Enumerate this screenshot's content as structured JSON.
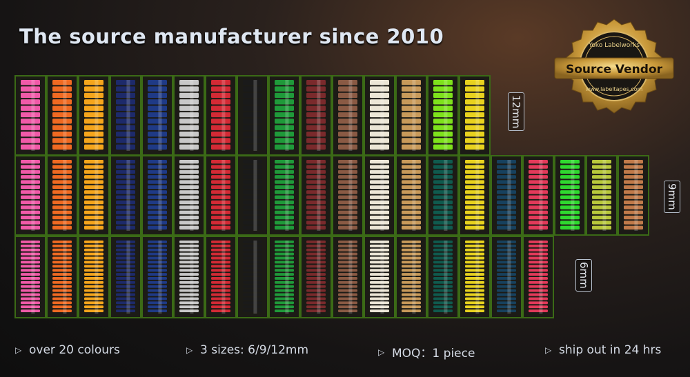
{
  "headline": "The source manufacturer since 2010",
  "badge": {
    "top_text": "Yoko Labelworks",
    "title": "Source Vendor",
    "url": "www.labeltapes.com"
  },
  "size_labels": {
    "s12": "12mm",
    "s9": "9mm",
    "s6": "6mm"
  },
  "features": [
    "over 20 colours",
    "3 sizes: 6/9/12mm",
    "MOQ：1 piece",
    "ship out in 24 hrs"
  ],
  "colors": {
    "box_green": "#4a8a1e",
    "box_inner": "#1c1b16",
    "spools": [
      "#f05aa8",
      "#f06a22",
      "#f5a51c",
      "#1d2a6a",
      "#1f3a86",
      "#c8c8c8",
      "#d32a35",
      "#1a1a1a",
      "#1f9a3a",
      "#7a2a2c",
      "#8a5a44",
      "#ece6d6",
      "#c89a5a",
      "#7ee21c",
      "#e8d21e",
      "#17415e",
      "#e23a5a",
      "#2fd82f",
      "#b8c83c",
      "#c07a4a",
      "#0f5a4e"
    ]
  },
  "rows": {
    "row12": [
      "#f05aa8",
      "#f06a22",
      "#f5a51c",
      "#1d2a6a",
      "#1f3a86",
      "#c8c8c8",
      "#d32a35",
      "#1a1a1a",
      "#1f9a3a",
      "#7a2a2c",
      "#8a5a44",
      "#ece6d6",
      "#c89a5a",
      "#7ee21c",
      "#e8d21e"
    ],
    "row9": [
      "#f05aa8",
      "#f06a22",
      "#f5a51c",
      "#1d2a6a",
      "#1f3a86",
      "#c8c8c8",
      "#d32a35",
      "#1a1a1a",
      "#1f9a3a",
      "#7a2a2c",
      "#8a5a44",
      "#ece6d6",
      "#c89a5a",
      "#0f5a4e",
      "#e8d21e",
      "#17415e",
      "#e23a5a",
      "#2fd82f",
      "#b8c83c",
      "#c07a4a"
    ],
    "row6": [
      "#f05aa8",
      "#f06a22",
      "#f5a51c",
      "#1d2a6a",
      "#1f3a86",
      "#c8c8c8",
      "#d32a35",
      "#1a1a1a",
      "#1f9a3a",
      "#7a2a2c",
      "#8a5a44",
      "#ece6d6",
      "#c89a5a",
      "#0f5a4e",
      "#e8d21e",
      "#17415e",
      "#e23a5a"
    ]
  }
}
